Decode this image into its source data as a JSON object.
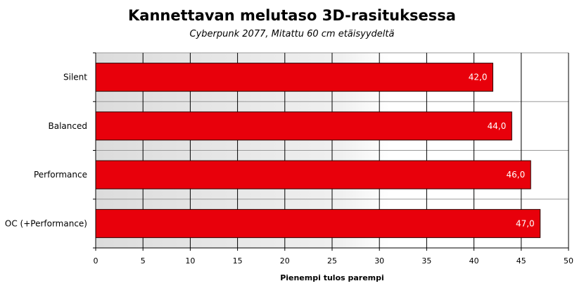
{
  "chart_data": {
    "type": "bar",
    "orientation": "horizontal",
    "title": "Kannettavan melutaso 3D-rasituksessa",
    "subtitle": "Cyberpunk 2077, Mitattu 60 cm etäisyydeltä",
    "xlabel": "Pienempi tulos parempi",
    "ylabel": "",
    "categories": [
      "Silent",
      "Balanced",
      "Performance",
      "OC (+Performance)"
    ],
    "values": [
      42.0,
      44.0,
      46.0,
      47.0
    ],
    "value_labels": [
      "42,0",
      "44,0",
      "46,0",
      "47,0"
    ],
    "xlim": [
      0,
      50
    ],
    "ticks": [
      0,
      5,
      10,
      15,
      20,
      25,
      30,
      35,
      40,
      45,
      50
    ],
    "bar_color": "#e8000b",
    "grid": true,
    "legend": "none"
  }
}
